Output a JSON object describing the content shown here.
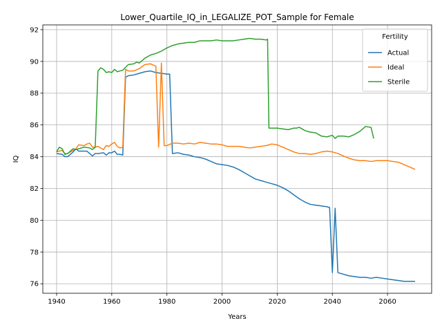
{
  "chart_data": {
    "type": "line",
    "title": "Lower_Quartile_IQ_in_LEGALIZE_POT_Sample for Female",
    "xlabel": "Years",
    "ylabel": "IQ",
    "xlim": [
      1935,
      2076
    ],
    "ylim": [
      75.4,
      92.3
    ],
    "xticks": [
      1940,
      1960,
      1980,
      2000,
      2020,
      2040,
      2060
    ],
    "yticks": [
      76,
      78,
      80,
      82,
      84,
      86,
      88,
      90,
      92
    ],
    "grid": true,
    "legend": {
      "title": "Fertility",
      "placement": "top-right"
    },
    "series": [
      {
        "name": "Actual",
        "color": "#1f77b4",
        "x": [
          1940,
          1942,
          1943,
          1944,
          1946,
          1947,
          1948,
          1950,
          1951,
          1952,
          1953,
          1954,
          1955,
          1957,
          1958,
          1959,
          1960,
          1961,
          1962,
          1963,
          1964,
          1965,
          1966,
          1968,
          1970,
          1972,
          1974,
          1976,
          1978,
          1980,
          1981,
          1982,
          1984,
          1986,
          1988,
          1990,
          1992,
          1994,
          1996,
          1998,
          2000,
          2002,
          2004,
          2006,
          2008,
          2010,
          2012,
          2014,
          2016,
          2018,
          2020,
          2022,
          2024,
          2026,
          2028,
          2030,
          2032,
          2034,
          2036,
          2038,
          2039,
          2040,
          2041,
          2042,
          2044,
          2046,
          2048,
          2050,
          2052,
          2054,
          2056,
          2058,
          2060,
          2062,
          2064,
          2066,
          2068,
          2070
        ],
        "values": [
          84.2,
          84.15,
          84.0,
          84.0,
          84.3,
          84.5,
          84.35,
          84.35,
          84.35,
          84.2,
          84.05,
          84.2,
          84.2,
          84.25,
          84.1,
          84.25,
          84.25,
          84.35,
          84.15,
          84.15,
          84.1,
          89.0,
          89.1,
          89.15,
          89.25,
          89.35,
          89.4,
          89.3,
          89.25,
          89.2,
          89.2,
          84.2,
          84.25,
          84.15,
          84.1,
          84.0,
          83.95,
          83.85,
          83.7,
          83.55,
          83.5,
          83.45,
          83.35,
          83.2,
          83.0,
          82.8,
          82.6,
          82.5,
          82.4,
          82.3,
          82.2,
          82.05,
          81.85,
          81.6,
          81.35,
          81.15,
          81.0,
          80.95,
          80.9,
          80.85,
          80.8,
          76.7,
          80.75,
          76.7,
          76.6,
          76.5,
          76.45,
          76.4,
          76.4,
          76.35,
          76.4,
          76.35,
          76.3,
          76.25,
          76.2,
          76.15,
          76.15,
          76.15
        ]
      },
      {
        "name": "Ideal",
        "color": "#ff7f0e",
        "x": [
          1940,
          1942,
          1943,
          1944,
          1946,
          1947,
          1948,
          1950,
          1951,
          1952,
          1953,
          1954,
          1955,
          1957,
          1958,
          1959,
          1960,
          1961,
          1962,
          1963,
          1964,
          1965,
          1966,
          1968,
          1970,
          1972,
          1974,
          1976,
          1977,
          1978,
          1979,
          1980,
          1982,
          1984,
          1986,
          1988,
          1990,
          1992,
          1994,
          1996,
          1998,
          2000,
          2002,
          2004,
          2006,
          2008,
          2010,
          2012,
          2014,
          2016,
          2018,
          2020,
          2022,
          2024,
          2026,
          2028,
          2030,
          2032,
          2034,
          2036,
          2038,
          2040,
          2042,
          2044,
          2046,
          2048,
          2050,
          2052,
          2054,
          2056,
          2058,
          2060,
          2062,
          2064,
          2066,
          2068,
          2070
        ],
        "values": [
          84.3,
          84.4,
          84.2,
          84.2,
          84.4,
          84.5,
          84.75,
          84.7,
          84.8,
          84.85,
          84.6,
          84.6,
          84.65,
          84.45,
          84.7,
          84.65,
          84.8,
          84.9,
          84.65,
          84.55,
          84.6,
          89.5,
          89.4,
          89.4,
          89.55,
          89.8,
          89.85,
          89.7,
          84.6,
          89.9,
          84.7,
          84.7,
          84.85,
          84.85,
          84.8,
          84.85,
          84.8,
          84.9,
          84.85,
          84.8,
          84.8,
          84.75,
          84.65,
          84.65,
          84.65,
          84.6,
          84.55,
          84.6,
          84.65,
          84.7,
          84.8,
          84.75,
          84.6,
          84.45,
          84.3,
          84.2,
          84.2,
          84.15,
          84.2,
          84.3,
          84.35,
          84.3,
          84.2,
          84.05,
          83.9,
          83.8,
          83.75,
          83.75,
          83.7,
          83.75,
          83.75,
          83.75,
          83.7,
          83.65,
          83.5,
          83.35,
          83.2
        ]
      },
      {
        "name": "Sterile",
        "color": "#2ca02c",
        "x": [
          1940,
          1941,
          1942,
          1943,
          1944,
          1946,
          1947,
          1948,
          1950,
          1952,
          1953,
          1954,
          1955,
          1956,
          1957,
          1958,
          1959,
          1960,
          1961,
          1962,
          1963,
          1964,
          1966,
          1968,
          1969,
          1970,
          1972,
          1974,
          1976,
          1978,
          1980,
          1982,
          1984,
          1986,
          1988,
          1990,
          1992,
          1994,
          1996,
          1998,
          2000,
          2002,
          2004,
          2006,
          2008,
          2010,
          2012,
          2014,
          2016,
          2016.5,
          2017,
          2018,
          2020,
          2022,
          2024,
          2026,
          2027,
          2028,
          2030,
          2032,
          2034,
          2036,
          2038,
          2040,
          2041,
          2042,
          2044,
          2046,
          2048,
          2050,
          2052,
          2054,
          2055
        ],
        "values": [
          84.3,
          84.6,
          84.5,
          84.15,
          84.2,
          84.5,
          84.45,
          84.5,
          84.6,
          84.55,
          84.45,
          84.6,
          89.4,
          89.6,
          89.5,
          89.3,
          89.35,
          89.3,
          89.5,
          89.35,
          89.4,
          89.45,
          89.8,
          89.85,
          89.95,
          89.9,
          90.2,
          90.4,
          90.5,
          90.65,
          90.85,
          91.0,
          91.1,
          91.15,
          91.2,
          91.2,
          91.3,
          91.3,
          91.3,
          91.35,
          91.3,
          91.3,
          91.3,
          91.35,
          91.4,
          91.45,
          91.4,
          91.4,
          91.35,
          91.4,
          85.8,
          85.8,
          85.8,
          85.75,
          85.7,
          85.8,
          85.8,
          85.85,
          85.65,
          85.55,
          85.5,
          85.3,
          85.25,
          85.35,
          85.15,
          85.3,
          85.3,
          85.25,
          85.4,
          85.6,
          85.9,
          85.85,
          85.15
        ]
      }
    ]
  }
}
